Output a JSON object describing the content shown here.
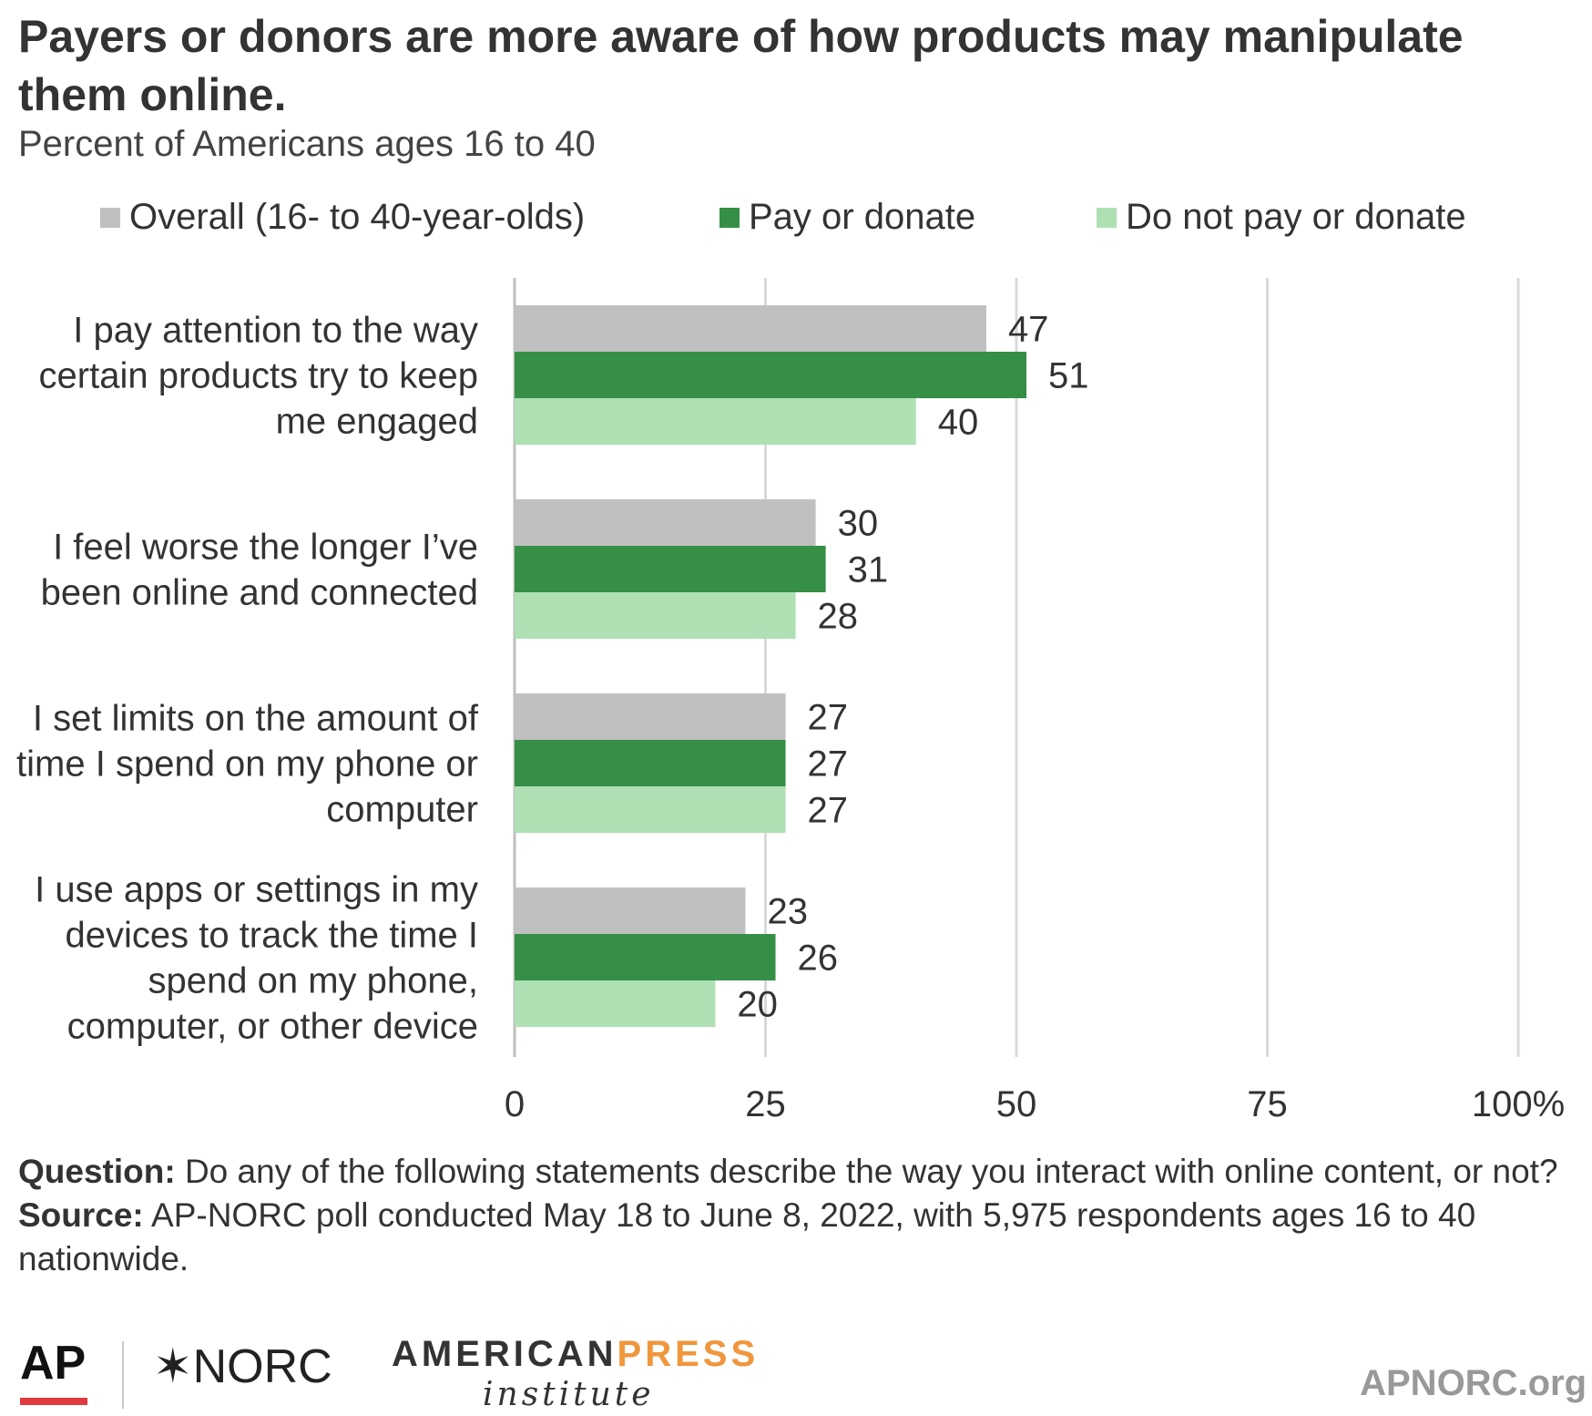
{
  "title": "Payers or donors are more aware of how products may manipulate them online.",
  "subtitle": "Percent of Americans ages 16 to 40",
  "colors": {
    "overall": "#c0c0c0",
    "pay": "#368f46",
    "nopay": "#aee0b4",
    "grid": "#d9d9d9"
  },
  "chart_data": {
    "type": "bar",
    "orientation": "horizontal",
    "categories": [
      [
        "I pay attention to the way",
        "certain products try to keep",
        "me engaged"
      ],
      [
        "I feel worse the longer I’ve",
        "been online and connected"
      ],
      [
        "I set limits on the amount of",
        "time I spend on my phone or",
        "computer"
      ],
      [
        "I use apps or settings in my",
        "devices to track the time I",
        "spend on my phone,",
        "computer, or other device"
      ]
    ],
    "series": [
      {
        "name": "Overall (16- to 40-year-olds)",
        "color": "#c0c0c0",
        "values": [
          47,
          30,
          27,
          23
        ]
      },
      {
        "name": "Pay or donate",
        "color": "#368f46",
        "values": [
          51,
          31,
          27,
          26
        ]
      },
      {
        "name": "Do not pay or donate",
        "color": "#aee0b4",
        "values": [
          40,
          28,
          27,
          20
        ]
      }
    ],
    "xlim": [
      0,
      100
    ],
    "xticks": [
      "0",
      "25",
      "50",
      "75",
      "100%"
    ],
    "grid": true,
    "legend": "top"
  },
  "footnote": {
    "question_label": "Question:",
    "question_text": "Do any of the following statements describe the way you interact with online content, or not?",
    "source_label": "Source:",
    "source_text": "AP-NORC poll conducted May 18 to June 8, 2022, with 5,975 respondents ages 16 to 40 nationwide."
  },
  "logos": {
    "ap": "AP",
    "norc": "✶NORC",
    "api_1": "AMERICAN",
    "api_2": "PRESS",
    "api_3": "institute",
    "site": "APNORC.org"
  }
}
